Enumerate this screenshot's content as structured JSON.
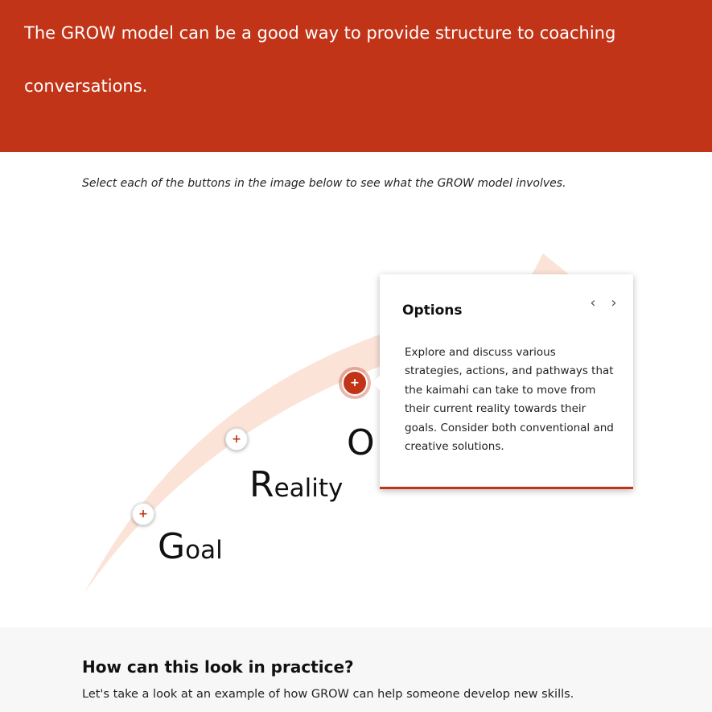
{
  "banner": {
    "text": "The GROW model can be a good way to provide structure to coaching conversations."
  },
  "instruction": "Select each of the buttons in the image below to see what the GROW model involves.",
  "graphic": {
    "arrow_color": "#fbe3d8",
    "words": {
      "goal": {
        "cap": "G",
        "rest": "oal"
      },
      "reality": {
        "cap": "R",
        "rest": "eality"
      },
      "options": {
        "cap": "O"
      }
    },
    "hotspots": [
      {
        "label": "+",
        "icon": "plus-icon"
      },
      {
        "label": "+",
        "icon": "plus-icon"
      },
      {
        "label": "+",
        "icon": "plus-icon"
      }
    ]
  },
  "popup": {
    "title": "Options",
    "prev_icon": "‹",
    "next_icon": "›",
    "body": "Explore and discuss various strategies, actions, and pathways that the kaimahi can take to move from their current reality towards their goals. Consider both conventional and creative solutions."
  },
  "practice": {
    "heading": "How can this look in practice?",
    "text": "Let's take a look at an example of how GROW can help someone develop new skills."
  },
  "colors": {
    "accent": "#c13418"
  }
}
